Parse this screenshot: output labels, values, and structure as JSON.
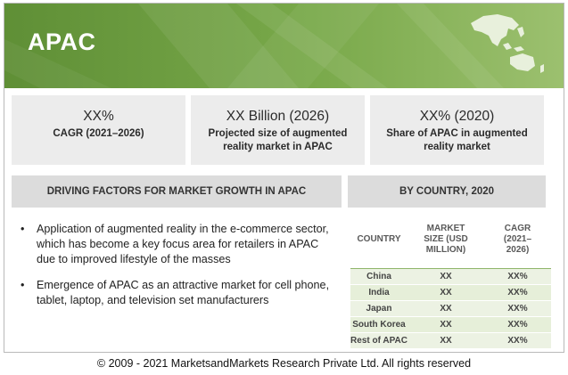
{
  "banner": {
    "title": "APAC",
    "map_icon": "asia-pacific-map-icon"
  },
  "stats": [
    {
      "value": "XX%",
      "desc": "CAGR (2021–2026)"
    },
    {
      "value": "XX Billion (2026)",
      "desc": "Projected size of augmented reality market in APAC"
    },
    {
      "value": "XX% (2020)",
      "desc": "Share of APAC in augmented reality market"
    }
  ],
  "drivers": {
    "heading": "DRIVING FACTORS FOR MARKET GROWTH IN APAC",
    "items": [
      "Application of augmented reality in the e-commerce sector, which has become a key focus area for retailers in APAC due to improved lifestyle of the masses",
      "Emergence of APAC as an attractive market for cell phone, tablet, laptop, and television set manufacturers"
    ]
  },
  "by_country": {
    "heading": "BY COUNTRY, 2020",
    "columns": [
      "COUNTRY",
      "MARKET SIZE (USD MILLION)",
      "CAGR (2021–2026)"
    ],
    "rows": [
      {
        "country": "China",
        "size": "XX",
        "cagr": "XX%"
      },
      {
        "country": "India",
        "size": "XX",
        "cagr": "XX%"
      },
      {
        "country": "Japan",
        "size": "XX",
        "cagr": "XX%"
      },
      {
        "country": "South Korea",
        "size": "XX",
        "cagr": "XX%"
      },
      {
        "country": "Rest of APAC",
        "size": "XX",
        "cagr": "XX%"
      }
    ]
  },
  "colors": {
    "banner_green": "#6e9e3f",
    "box_gray": "#ececec",
    "table_green": "#e6efd9"
  },
  "footer": {
    "copyright": "© 2009 - 2021 MarketsandMarkets Research Private Ltd. All rights reserved"
  }
}
